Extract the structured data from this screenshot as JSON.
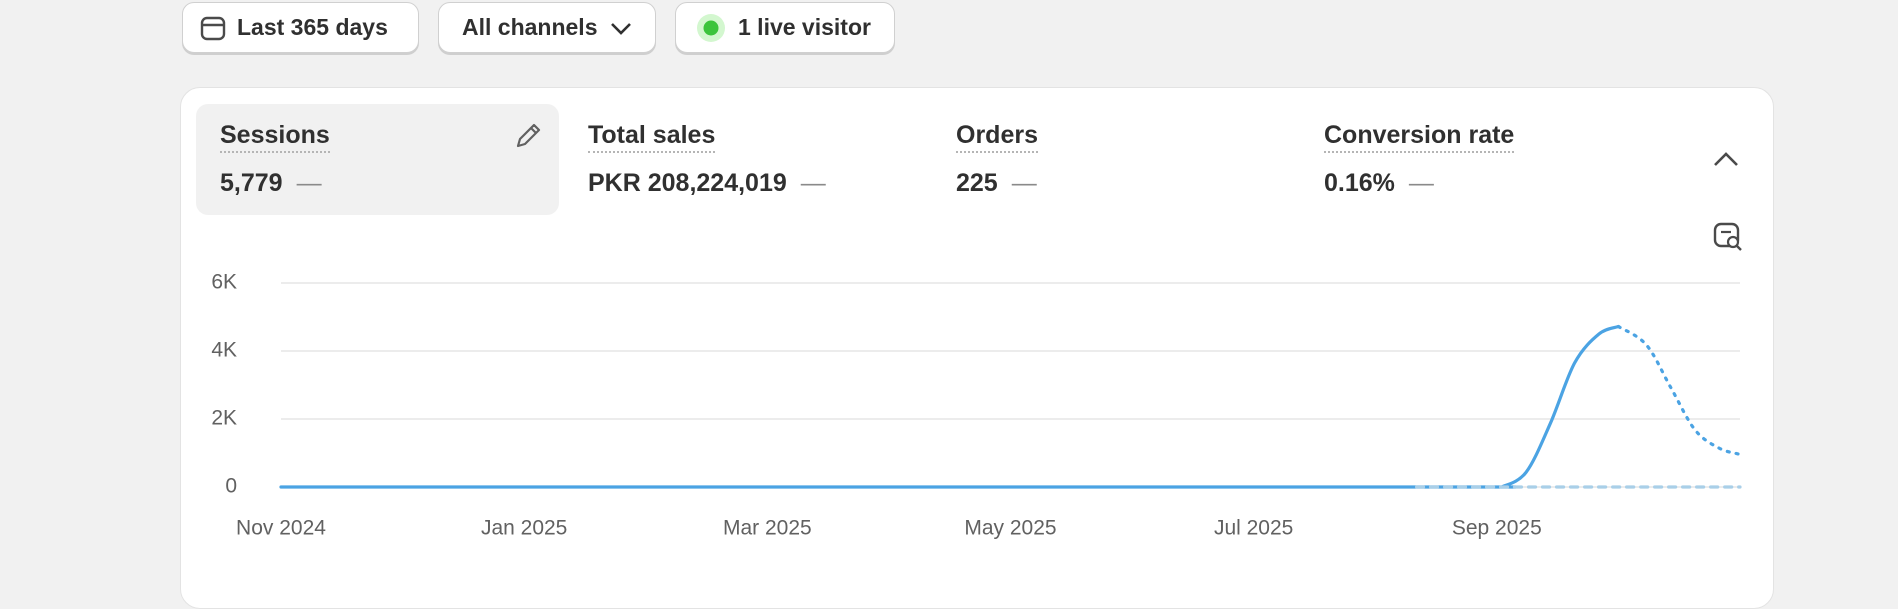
{
  "filters": [
    {
      "label": "Last 365 days"
    },
    {
      "label": "All channels"
    },
    {
      "label": "1 live visitor"
    }
  ],
  "metrics": [
    {
      "label": "Sessions",
      "value": "5,779",
      "change": "—"
    },
    {
      "label": "Total sales",
      "value": "PKR 208,224,019",
      "change": "—"
    },
    {
      "label": "Orders",
      "value": "225",
      "change": "—"
    },
    {
      "label": "Conversion rate",
      "value": "0.16%",
      "change": "—"
    }
  ],
  "chart_data": {
    "type": "line",
    "xlim": [
      0,
      12
    ],
    "xticks": [
      {
        "value": 0,
        "label": "Nov 2024"
      },
      {
        "value": 2,
        "label": "Jan 2025"
      },
      {
        "value": 4,
        "label": "Mar 2025"
      },
      {
        "value": 6,
        "label": "May 2025"
      },
      {
        "value": 8,
        "label": "Jul 2025"
      },
      {
        "value": 10,
        "label": "Sep 2025"
      }
    ],
    "ylim": [
      0,
      6000
    ],
    "yticks": [
      {
        "value": 0,
        "label": "0"
      },
      {
        "value": 2000,
        "label": "2K"
      },
      {
        "value": 4000,
        "label": "4K"
      },
      {
        "value": 6000,
        "label": "6K"
      }
    ],
    "grid": true,
    "series": [
      {
        "color": "#4ba3e3",
        "style": "solid",
        "x": [
          0,
          2,
          4,
          6,
          8,
          10,
          10.04,
          10.24,
          10.44,
          10.64,
          10.84,
          11
        ],
        "values": [
          0,
          0,
          0,
          0,
          0,
          0,
          0,
          430,
          1870,
          3650,
          4500,
          4720
        ]
      },
      {
        "color": "#4ba3e3",
        "style": "dotted",
        "x": [
          11,
          11.23,
          11.43,
          11.63,
          11.83,
          12
        ],
        "values": [
          4720,
          4180,
          2930,
          1680,
          1140,
          960
        ]
      },
      {
        "color": "#a9cfe8",
        "style": "dashed",
        "x": [
          9.34,
          12
        ],
        "values": [
          0,
          0
        ]
      }
    ]
  }
}
